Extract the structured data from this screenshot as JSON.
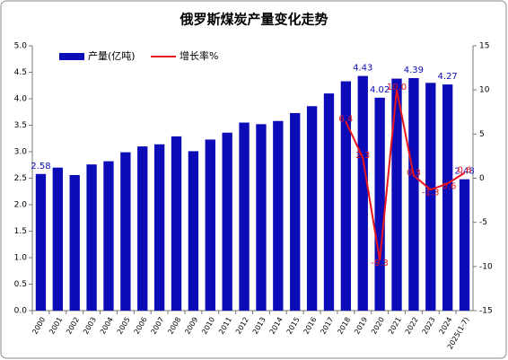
{
  "chart_data": {
    "type": "bar",
    "title": "俄罗斯煤炭产量变化走势",
    "categories": [
      "2000",
      "2001",
      "2002",
      "2003",
      "2004",
      "2005",
      "2006",
      "2007",
      "2008",
      "2009",
      "2010",
      "2011",
      "2012",
      "2013",
      "2014",
      "2015",
      "2016",
      "2017",
      "2018",
      "2019",
      "2020",
      "2021",
      "2022",
      "2023",
      "2024",
      "2025(1-7)"
    ],
    "series": [
      {
        "name": "产量(亿吨)",
        "type": "bar",
        "color": "#0b0bb8",
        "values": [
          2.58,
          2.7,
          2.56,
          2.76,
          2.82,
          2.99,
          3.1,
          3.14,
          3.29,
          3.01,
          3.23,
          3.36,
          3.55,
          3.52,
          3.58,
          3.73,
          3.86,
          4.1,
          4.33,
          4.43,
          4.02,
          4.38,
          4.39,
          4.3,
          4.27,
          2.48
        ],
        "value_labels": [
          "2.58",
          null,
          null,
          null,
          null,
          null,
          null,
          null,
          null,
          null,
          null,
          null,
          null,
          null,
          null,
          null,
          null,
          null,
          null,
          "4.43",
          "4.02",
          null,
          "4.39",
          null,
          "4.27",
          "2.48"
        ]
      },
      {
        "name": "增长率%",
        "type": "line",
        "axis": "y2",
        "color": "#e8141b",
        "values": [
          null,
          null,
          null,
          null,
          null,
          null,
          null,
          null,
          null,
          null,
          null,
          null,
          null,
          null,
          null,
          null,
          null,
          null,
          6.4,
          2.3,
          -9.3,
          10.0,
          0.3,
          -1.3,
          -0.6,
          0.6
        ],
        "value_labels": [
          null,
          null,
          null,
          null,
          null,
          null,
          null,
          null,
          null,
          null,
          null,
          null,
          null,
          null,
          null,
          null,
          null,
          null,
          "6.4",
          "2.3",
          "-9.3",
          "10.0",
          "0.3",
          "-1.3",
          "-0.6",
          "0.6"
        ]
      }
    ],
    "ylim": [
      0,
      5
    ],
    "yticks": [
      {
        "value": 0,
        "label": "0.0"
      },
      {
        "value": 0.5,
        "label": "0.5"
      },
      {
        "value": 1,
        "label": "1.0"
      },
      {
        "value": 1.5,
        "label": "1.5"
      },
      {
        "value": 2,
        "label": "2.0"
      },
      {
        "value": 2.5,
        "label": "2.5"
      },
      {
        "value": 3,
        "label": "3.0"
      },
      {
        "value": 3.5,
        "label": "3.5"
      },
      {
        "value": 4,
        "label": "4.0"
      },
      {
        "value": 4.5,
        "label": "4.5"
      },
      {
        "value": 5,
        "label": "5.0"
      }
    ],
    "y2lim": [
      -15,
      15
    ],
    "y2ticks": [
      -15,
      -10,
      -5,
      0,
      5,
      10,
      15
    ],
    "legend": "top-left",
    "grid": false
  }
}
